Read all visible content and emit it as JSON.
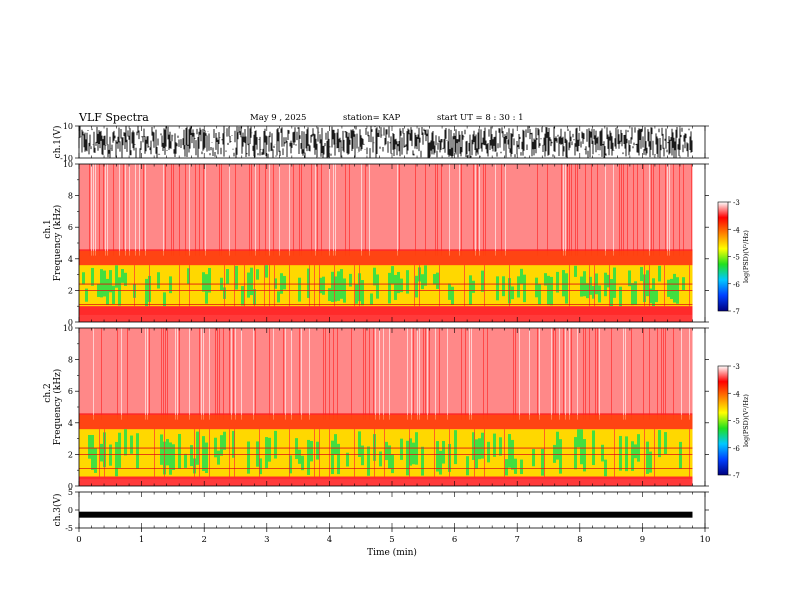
{
  "header": {
    "title": "VLF Spectra",
    "date": "May 9 , 2025",
    "station": "station= KAP",
    "start": "start UT = 8 : 30 : 1"
  },
  "colors": {
    "background": "#ffffff",
    "axis": "#000000",
    "spectrogram_base": "#ff2a2a",
    "spectrogram_light": "#ffd6d6",
    "band_green": "#22e04a",
    "band_yellow": "#ffd800",
    "colorbar_stops": [
      "#000080",
      "#0040ff",
      "#00c8ff",
      "#20e020",
      "#ffff00",
      "#ff8000",
      "#ff0000",
      "#ffffff"
    ]
  },
  "chart_data": [
    {
      "type": "line",
      "panel": "ch1-waveform",
      "ylabel": "ch.1(V)",
      "ylim": [
        -10,
        10
      ],
      "yticks": [
        "10",
        "-10"
      ],
      "description_values": {
        "amplitude_min": -10,
        "amplitude_max": 10
      },
      "xlim": [
        0,
        10
      ],
      "x_extent_min": 9.8
    },
    {
      "type": "heatmap",
      "panel": "ch1-spectrogram",
      "ylabel": "Frequency (kHz)",
      "channel_label": "ch.1",
      "ylim": [
        0,
        10
      ],
      "yticks": [
        "0",
        "2",
        "4",
        "6",
        "8",
        "10"
      ],
      "xlim": [
        0,
        10
      ],
      "x_extent_min": 9.8,
      "colorbar": {
        "label": "log(PSD)(V²/Hz)",
        "range": [
          -7,
          -3
        ],
        "ticks": [
          "-3",
          "-4",
          "-5",
          "-6",
          "-7"
        ]
      },
      "bands": [
        {
          "from_khz": 1.0,
          "to_khz": 3.6,
          "level": "high"
        },
        {
          "from_khz": 3.6,
          "to_khz": 4.5,
          "level": "medium"
        }
      ]
    },
    {
      "type": "heatmap",
      "panel": "ch2-spectrogram",
      "ylabel": "Frequency (kHz)",
      "channel_label": "ch.2",
      "ylim": [
        0,
        10
      ],
      "yticks": [
        "0",
        "2",
        "4",
        "6",
        "8",
        "10"
      ],
      "xlim": [
        0,
        10
      ],
      "x_extent_min": 9.8,
      "colorbar": {
        "label": "log(PSD)(V²/Hz)",
        "range": [
          -7,
          -3
        ],
        "ticks": [
          "-3",
          "-4",
          "-5",
          "-6",
          "-7"
        ]
      },
      "bands": [
        {
          "from_khz": 0.6,
          "to_khz": 3.6,
          "level": "high"
        },
        {
          "from_khz": 3.6,
          "to_khz": 4.5,
          "level": "medium"
        }
      ]
    },
    {
      "type": "line",
      "panel": "ch3-waveform",
      "ylabel": "ch.3(V)",
      "ylim": [
        -5,
        5
      ],
      "yticks": [
        "5",
        "0",
        "-5"
      ],
      "description_values": {
        "center": -1.3
      },
      "xlim": [
        0,
        10
      ],
      "x_extent_min": 9.8,
      "xlabel": "Time (min)",
      "xticks": [
        "0",
        "1",
        "2",
        "3",
        "4",
        "5",
        "6",
        "7",
        "8",
        "9",
        "10"
      ]
    }
  ]
}
